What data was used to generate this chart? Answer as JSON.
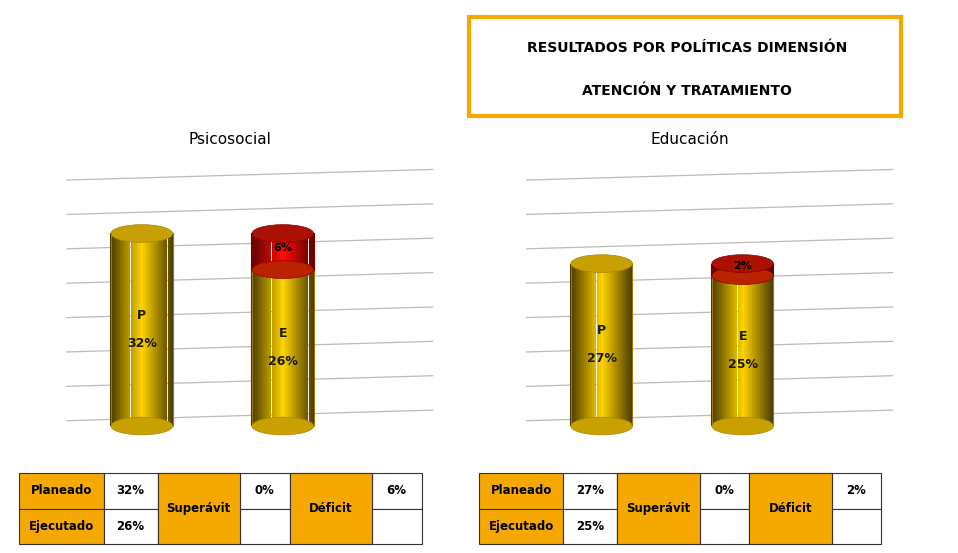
{
  "title_line1": "RESULTADOS POR POLÍTICAS DIMENSIÓN",
  "title_line2": "ATENCIÓN Y TRATAMIENTO",
  "orange_color": "#F5A800",
  "charts": [
    {
      "title": "Psicosocial",
      "planeado": 32,
      "ejecutado": 26,
      "superavit": 0,
      "deficit": 6,
      "deficit_label": "6%"
    },
    {
      "title": "Educación",
      "planeado": 27,
      "ejecutado": 25,
      "superavit": 0,
      "deficit": 2,
      "deficit_label": "2%"
    }
  ],
  "grid_color": "#BBBBBB",
  "bar_yellow_light": "#F5D000",
  "bar_yellow_dark": "#B89000",
  "bar_red_light": "#CC2200",
  "bar_red_dark": "#880000",
  "table_orange": "#F5A800",
  "table_border": "#333333"
}
